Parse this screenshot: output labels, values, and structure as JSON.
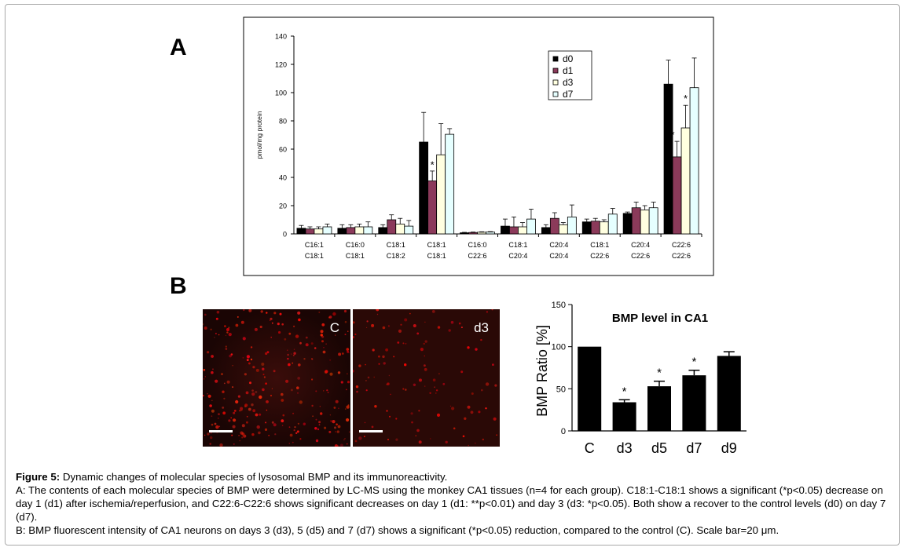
{
  "panel_a_letter": "A",
  "panel_b_letter": "B",
  "micrographs": [
    {
      "label": "C"
    },
    {
      "label": "d3"
    }
  ],
  "caption": {
    "fig_label": "Figure 5:",
    "title": " Dynamic changes of molecular species of lysosomal BMP and its immunoreactivity.",
    "line_a": "A: The contents of each molecular species of BMP were determined by LC-MS using the monkey CA1 tissues (n=4 for each group). C18:1-C18:1 shows a significant (*p<0.05) decrease on day 1 (d1) after ischemia/reperfusion, and C22:6-C22:6 shows significant decreases on day 1 (d1: **p<0.01) and day 3 (d3: *p<0.05). Both show a recover to the control levels (d0) on day 7 (d7).",
    "line_b": "B: BMP fluorescent intensity of CA1 neurons on days 3 (d3), 5 (d5) and 7 (d7) shows a significant (*p<0.05) reduction, compared to the control (C). Scale bar=20 μm."
  },
  "chart_data": [
    {
      "type": "bar",
      "ylabel": "pmol/mg protein",
      "ylim": [
        0,
        140
      ],
      "yticks": [
        0,
        20,
        40,
        60,
        80,
        100,
        120,
        140
      ],
      "categories": [
        [
          "C16:1",
          "C18:1"
        ],
        [
          "C16:0",
          "C18:1"
        ],
        [
          "C18:1",
          "C18:2"
        ],
        [
          "C18:1",
          "C18:1"
        ],
        [
          "C16:0",
          "C22:6"
        ],
        [
          "C18:1",
          "C20:4"
        ],
        [
          "C20:4",
          "C20:4"
        ],
        [
          "C18:1",
          "C22:6"
        ],
        [
          "C20:4",
          "C22:6"
        ],
        [
          "C22:6",
          "C22:6"
        ]
      ],
      "legend_position": "top-right",
      "colors": {
        "d0": "#000000",
        "d1": "#8b3a5a",
        "d3": "#ffffe0",
        "d7": "#e6ffff"
      },
      "series": [
        {
          "name": "d0",
          "values": [
            4,
            4,
            4.5,
            65,
            0.8,
            5.5,
            4.5,
            8.5,
            14.5,
            106
          ],
          "errors": [
            2,
            2.5,
            2,
            21,
            0.3,
            5,
            2,
            2,
            1,
            17
          ]
        },
        {
          "name": "d1",
          "values": [
            3.5,
            4.5,
            10,
            37.5,
            1,
            5,
            11,
            9,
            18.5,
            54.5
          ],
          "errors": [
            1.5,
            2,
            3.5,
            7,
            0.3,
            7,
            4,
            2,
            4,
            11
          ]
        },
        {
          "name": "d3",
          "values": [
            3.5,
            5,
            7,
            56,
            1.2,
            5,
            6.5,
            8.5,
            17,
            75
          ],
          "errors": [
            1.5,
            2,
            4,
            22,
            0.3,
            3,
            1.5,
            1.5,
            3,
            16
          ]
        },
        {
          "name": "d7",
          "values": [
            5,
            5,
            5.5,
            70.5,
            1.3,
            10.5,
            12,
            14,
            18.5,
            103.5
          ],
          "errors": [
            2,
            3.5,
            4,
            4,
            0.3,
            7,
            8.5,
            4,
            4,
            21
          ]
        }
      ],
      "annotations": [
        {
          "category_index": 3,
          "series": "d1",
          "text": "*"
        },
        {
          "category_index": 9,
          "series": "d1",
          "text": "**"
        },
        {
          "category_index": 9,
          "series": "d3",
          "text": "*"
        }
      ]
    },
    {
      "type": "bar",
      "title": "BMP level  in  CA1",
      "ylabel": "BMP Ratio [%]",
      "ylim": [
        0,
        150
      ],
      "yticks": [
        0,
        50,
        100,
        150
      ],
      "categories": [
        "C",
        "d3",
        "d5",
        "d7",
        "d9"
      ],
      "values": [
        100,
        34,
        53,
        66,
        89
      ],
      "errors": [
        0,
        3,
        6,
        6,
        5
      ],
      "significance": [
        "",
        "*",
        "*",
        "*",
        ""
      ]
    }
  ]
}
